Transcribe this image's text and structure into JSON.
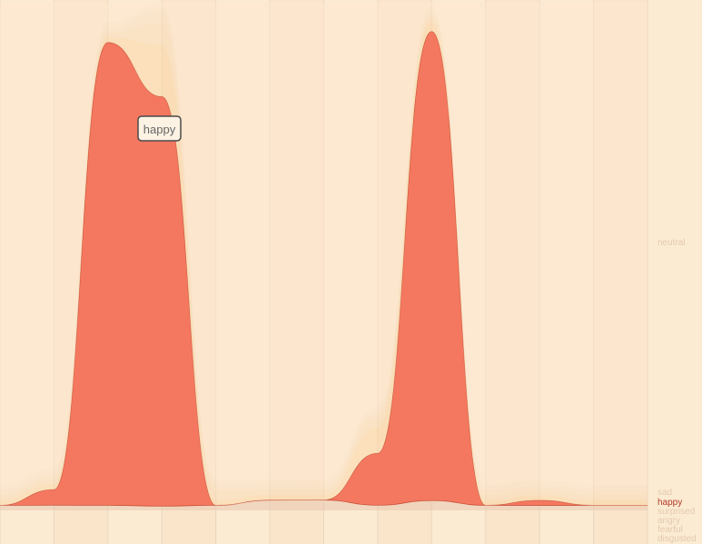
{
  "chart_data": {
    "type": "area",
    "subtype": "streamgraph",
    "x": [
      0,
      1,
      2,
      3,
      4,
      5,
      6,
      7,
      8,
      9,
      10,
      11,
      12
    ],
    "series": [
      {
        "name": "sad",
        "color": "#E8C7AE",
        "highlighted": false,
        "values": [
          0.01,
          0.01,
          0.01,
          0.01,
          0.01,
          0.02,
          0.02,
          0.01,
          0.02,
          0.01,
          0.01,
          0.01,
          0.01
        ]
      },
      {
        "name": "happy",
        "color": "#F4785F",
        "highlighted": true,
        "values": [
          0.0,
          0.03,
          0.91,
          0.95,
          0.0,
          0.0,
          0.0,
          0.1,
          0.95,
          0.0,
          0.01,
          0.0,
          0.0
        ]
      },
      {
        "name": "surprised",
        "color": "#F9D7A8",
        "highlighted": false,
        "values": [
          0.01,
          0.01,
          0.01,
          0.12,
          0.01,
          0.01,
          0.01,
          0.05,
          0.02,
          0.01,
          0.01,
          0.01,
          0.01
        ]
      },
      {
        "name": "angry",
        "color": "#F7DCB8",
        "highlighted": false,
        "values": [
          0.01,
          0.01,
          0.01,
          0.05,
          0.02,
          0.01,
          0.01,
          0.02,
          0.01,
          0.01,
          0.01,
          0.01,
          0.01
        ]
      },
      {
        "name": "fearful",
        "color": "#F9E0C3",
        "highlighted": false,
        "values": [
          0.01,
          0.01,
          0.01,
          0.03,
          0.01,
          0.01,
          0.01,
          0.01,
          0.01,
          0.01,
          0.01,
          0.01,
          0.01
        ]
      },
      {
        "name": "disgusted",
        "color": "#FAE3C8",
        "highlighted": false,
        "values": [
          0.01,
          0.01,
          0.01,
          0.01,
          0.01,
          0.01,
          0.01,
          0.01,
          0.01,
          0.01,
          0.01,
          0.01,
          0.01
        ]
      },
      {
        "name": "neutral",
        "color": "#FDE8CF",
        "highlighted": false,
        "values": [
          0.95,
          0.9,
          0.04,
          0.01,
          0.94,
          0.93,
          0.92,
          0.78,
          0.01,
          0.95,
          0.95,
          0.95,
          0.95
        ]
      }
    ],
    "tooltip": "happy",
    "grid": true,
    "legend_position": "right"
  },
  "colors": {
    "background": "#FCEBD3",
    "band_tint": "#F6D9B9",
    "gridline": "#E8D6C0",
    "legend_dim": "#E2C9AE",
    "legend_active": "#B23A26",
    "tooltip_bg": "#FDF3E4",
    "tooltip_border": "#4A4A4A",
    "tooltip_text": "#666666"
  }
}
